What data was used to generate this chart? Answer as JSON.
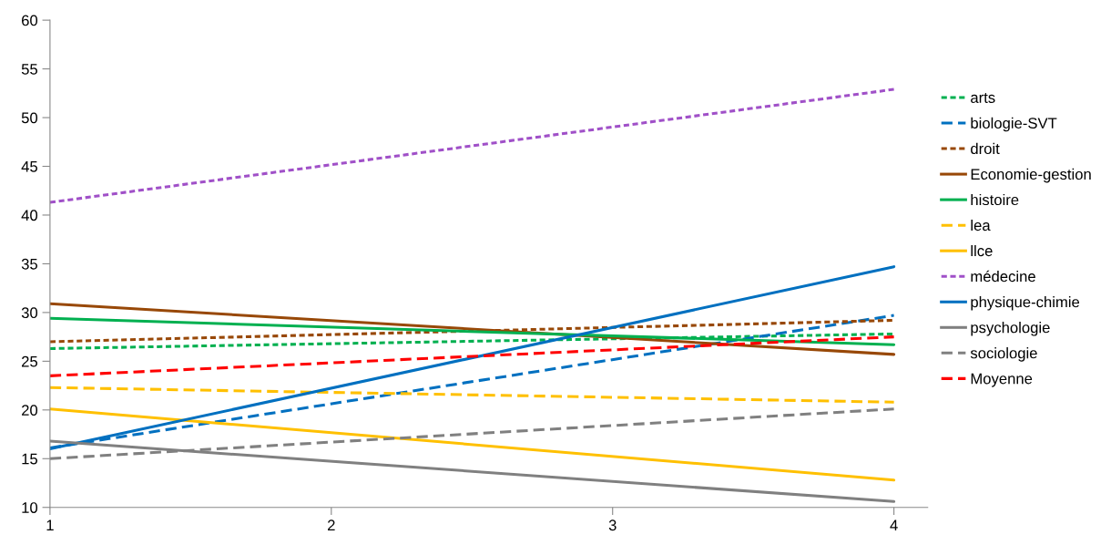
{
  "chart_data": {
    "type": "line",
    "x": [
      1,
      4
    ],
    "xlim": [
      1,
      4.12
    ],
    "xticks": [
      1,
      2,
      3,
      4
    ],
    "ylim": [
      10,
      60
    ],
    "yticks": [
      10,
      15,
      20,
      25,
      30,
      35,
      40,
      45,
      50,
      55,
      60
    ],
    "grid": false,
    "legend": "right",
    "marker": "none",
    "series": [
      {
        "name": "arts",
        "color": "#00b050",
        "line_style": "dotted",
        "values": [
          26.3,
          27.8
        ]
      },
      {
        "name": "biologie-SVT",
        "color": "#0070c0",
        "line_style": "dashed",
        "values": [
          16.1,
          29.7
        ]
      },
      {
        "name": "droit",
        "color": "#984807",
        "line_style": "dotted",
        "values": [
          27.0,
          29.2
        ]
      },
      {
        "name": "Economie-gestion",
        "color": "#984807",
        "line_style": "solid",
        "values": [
          30.9,
          25.7
        ]
      },
      {
        "name": "histoire",
        "color": "#00b050",
        "line_style": "solid",
        "values": [
          29.4,
          26.7
        ]
      },
      {
        "name": "lea",
        "color": "#ffc000",
        "line_style": "dashed",
        "values": [
          22.3,
          20.8
        ]
      },
      {
        "name": "llce",
        "color": "#ffc000",
        "line_style": "solid",
        "values": [
          20.1,
          12.8
        ]
      },
      {
        "name": "médecine",
        "color": "#a050c8",
        "line_style": "dotted",
        "values": [
          41.3,
          52.9
        ]
      },
      {
        "name": "physique-chimie",
        "color": "#0070c0",
        "line_style": "solid",
        "values": [
          16.0,
          34.7
        ]
      },
      {
        "name": "psychologie",
        "color": "#808080",
        "line_style": "solid",
        "values": [
          16.8,
          10.6
        ]
      },
      {
        "name": "sociologie",
        "color": "#808080",
        "line_style": "dashed",
        "values": [
          15.0,
          20.1
        ]
      },
      {
        "name": "Moyenne",
        "color": "#ff0000",
        "line_style": "dashed",
        "values": [
          23.5,
          27.5
        ]
      }
    ]
  }
}
